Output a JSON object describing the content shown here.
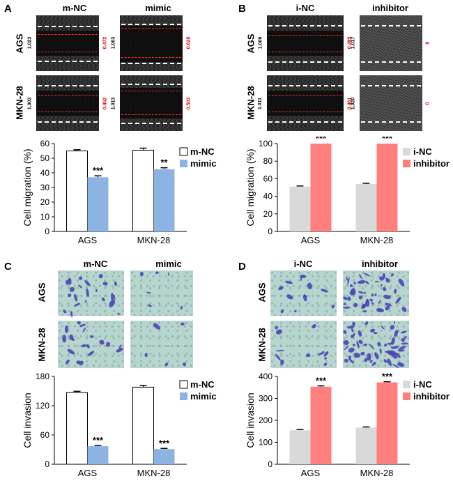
{
  "panels": {
    "A": {
      "letter": "A",
      "columns": [
        "m-NC",
        "mimic"
      ],
      "rows": [
        "AGS",
        "MKN-28"
      ],
      "measurements": [
        [
          "1.023",
          "0.472",
          "1.003",
          "0.628"
        ],
        [
          "1.003",
          "0.452",
          "1.013",
          "0.503"
        ]
      ]
    },
    "B": {
      "letter": "B",
      "columns": [
        "i-NC",
        "inhibitor"
      ],
      "rows": [
        "AGS",
        "MKN-28"
      ],
      "measurements": [
        [
          "1.009",
          "0.495",
          "1.017",
          "0"
        ],
        [
          "1.011",
          "0.461",
          "1.020",
          "0"
        ]
      ]
    },
    "C": {
      "letter": "C",
      "columns": [
        "m-NC",
        "mimic"
      ],
      "rows": [
        "AGS",
        "MKN-28"
      ]
    },
    "D": {
      "letter": "D",
      "columns": [
        "i-NC",
        "inhibitor"
      ],
      "rows": [
        "AGS",
        "MKN-28"
      ]
    }
  },
  "colors": {
    "control_white": "#ffffff",
    "mimic_blue": "#8db3e2",
    "inc_gray": "#d9d9d9",
    "inhibitor_red": "#ff7f7f"
  },
  "chart_data": [
    {
      "panel": "A",
      "type": "bar",
      "categories": [
        "AGS",
        "MKN-28"
      ],
      "series": [
        {
          "name": "m-NC",
          "values": [
            55.0,
            55.5
          ],
          "errors": [
            0.8,
            1.4
          ]
        },
        {
          "name": "mimic",
          "values": [
            37.0,
            42.5
          ],
          "errors": [
            1.0,
            1.0
          ]
        }
      ],
      "significance": [
        [
          "",
          "***"
        ],
        [
          "",
          "**"
        ]
      ],
      "ylabel": "Cell migration (%)",
      "ylim": [
        0,
        60
      ],
      "yticks": [
        "0",
        "10",
        "20",
        "30",
        "40",
        "50",
        "60"
      ],
      "legend_position": "top-right"
    },
    {
      "panel": "B",
      "type": "bar",
      "categories": [
        "AGS",
        "MKN-28"
      ],
      "series": [
        {
          "name": "i-NC",
          "values": [
            51.0,
            54.0
          ],
          "errors": [
            0.8,
            0.8
          ]
        },
        {
          "name": "inhibitor",
          "values": [
            100,
            100
          ],
          "errors": [
            0,
            0
          ]
        }
      ],
      "significance": [
        [
          "",
          "***"
        ],
        [
          "",
          "***"
        ]
      ],
      "ylabel": "Cell migration (%)",
      "ylim": [
        0,
        100
      ],
      "yticks": [
        "0",
        "20",
        "40",
        "60",
        "80",
        "100"
      ],
      "legend_position": "top-right"
    },
    {
      "panel": "C",
      "type": "bar",
      "categories": [
        "AGS",
        "MKN-28"
      ],
      "series": [
        {
          "name": "m-NC",
          "values": [
            147,
            158
          ],
          "errors": [
            2.5,
            3.5
          ]
        },
        {
          "name": "mimic",
          "values": [
            37,
            31
          ],
          "errors": [
            1.5,
            1.5
          ]
        }
      ],
      "significance": [
        [
          "",
          "***"
        ],
        [
          "",
          "***"
        ]
      ],
      "ylabel": "Cell invasion",
      "ylim": [
        0,
        180
      ],
      "yticks": [
        "0",
        "60",
        "120",
        "180"
      ],
      "legend_position": "top-right"
    },
    {
      "panel": "D",
      "type": "bar",
      "categories": [
        "AGS",
        "MKN-28"
      ],
      "series": [
        {
          "name": "i-NC",
          "values": [
            155,
            167
          ],
          "errors": [
            3,
            3
          ]
        },
        {
          "name": "inhibitor",
          "values": [
            353,
            373
          ],
          "errors": [
            4,
            3
          ]
        }
      ],
      "significance": [
        [
          "",
          "***"
        ],
        [
          "",
          "***"
        ]
      ],
      "ylabel": "Cell invasion",
      "ylim": [
        0,
        400
      ],
      "yticks": [
        "0",
        "100",
        "200",
        "300",
        "400"
      ],
      "legend_position": "top-right"
    }
  ]
}
